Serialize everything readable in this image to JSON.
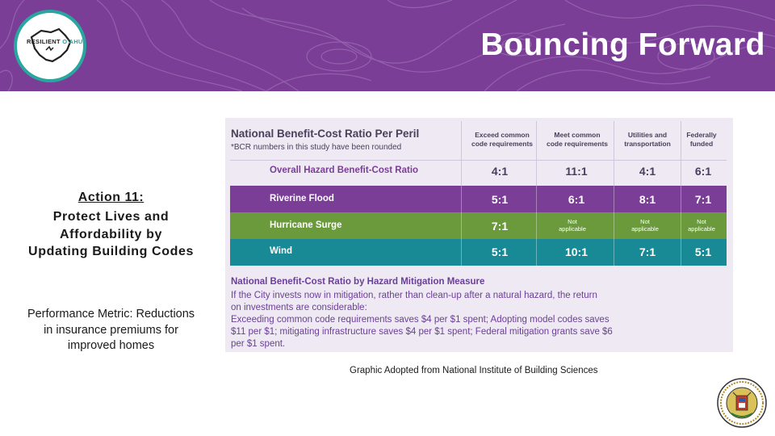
{
  "header": {
    "title": "Bouncing Forward",
    "logo": {
      "text_left": "RESILIENT",
      "text_right": "O'AHU",
      "icon": "oahu-island-logo-icon"
    },
    "bg_color": "#7a3e96"
  },
  "left_panel": {
    "action_heading": "Action 11:",
    "action_lines": [
      "Protect Lives and",
      "Affordability by",
      "Updating Building Codes"
    ],
    "metric_lines": [
      "Performance Metric: Reductions",
      "in insurance premiums for",
      "improved homes"
    ]
  },
  "graphic": {
    "title": "National Benefit-Cost Ratio Per Peril",
    "note": "*BCR numbers in this study have been rounded",
    "columns": [
      [
        "Exceed common",
        "code requirements"
      ],
      [
        "Meet common",
        "code requirements"
      ],
      [
        "Utilities and",
        "transportation"
      ],
      [
        "Federally",
        "funded"
      ]
    ],
    "rows": [
      {
        "label": "Overall Hazard Benefit-Cost Ratio",
        "values": [
          "4:1",
          "11:1",
          "4:1",
          "6:1"
        ]
      },
      {
        "label": "Riverine Flood",
        "values": [
          "5:1",
          "6:1",
          "8:1",
          "7:1"
        ]
      },
      {
        "label": "Hurricane Surge",
        "values": [
          "7:1",
          "Not applicable",
          "Not applicable",
          "Not applicable"
        ]
      },
      {
        "label": "Wind",
        "values": [
          "5:1",
          "10:1",
          "7:1",
          "5:1"
        ]
      }
    ],
    "row_colors": [
      "#eee9f2",
      "#7a3e96",
      "#6a9a3c",
      "#178a96"
    ],
    "measure_title": "National Benefit-Cost Ratio by Hazard Mitigation Measure",
    "measure_lines": [
      "If the City invests now in mitigation, rather than clean-up after a natural hazard, the return",
      "on investments are considerable:",
      "Exceeding common code requirements saves $4 per $1 spent; Adopting model codes saves",
      "$11 per $1; mitigating infrastructure saves $4 per $1 spent; Federal mitigation grants save $6",
      "per $1 spent."
    ]
  },
  "caption": "Graphic Adopted from National Institute of Building Sciences",
  "seal": {
    "icon": "city-county-honolulu-seal-icon"
  }
}
